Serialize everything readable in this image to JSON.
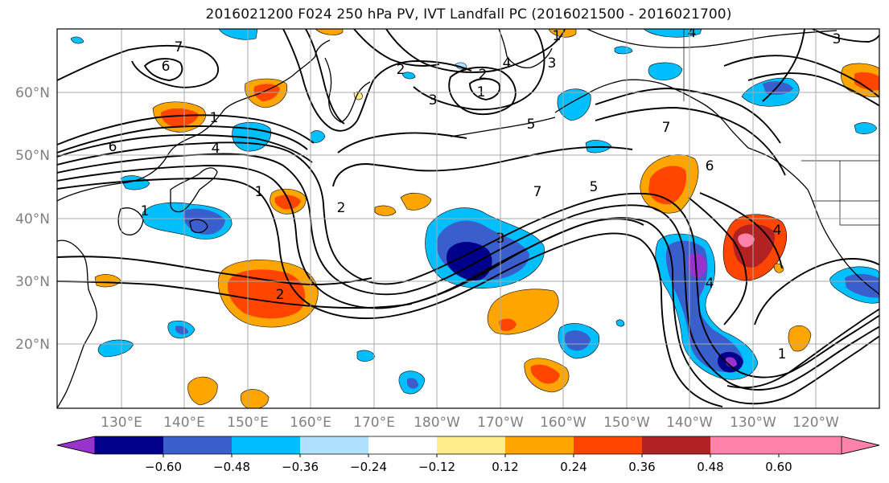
{
  "title": "2016021200 F024 250 hPa PV, IVT Landfall PC (2016021500 - 2016021700)",
  "map": {
    "lat_labels": [
      "60°N",
      "50°N",
      "40°N",
      "30°N",
      "20°N"
    ],
    "lon_labels": [
      "130°E",
      "140°E",
      "150°E",
      "160°E",
      "170°E",
      "180°W",
      "170°W",
      "160°W",
      "150°W",
      "140°W",
      "130°W",
      "120°W"
    ],
    "pv_contour_labels": [
      "7",
      "6",
      "6",
      "4",
      "1",
      "1",
      "2",
      "2",
      "4",
      "3",
      "3",
      "1",
      "2",
      "4",
      "1",
      "5",
      "7",
      "6",
      "7",
      "5",
      "1",
      "2",
      "3",
      "4",
      "1",
      "3",
      "4"
    ],
    "colors": {
      "axis_label": "#808080",
      "gridline": "#aaaaaa",
      "coastline": "#000000",
      "contour": "#000000"
    }
  },
  "colorbar": {
    "tick_labels": [
      "−0.60",
      "−0.48",
      "−0.36",
      "−0.24",
      "−0.12",
      "0.12",
      "0.24",
      "0.36",
      "0.48",
      "0.60"
    ],
    "bins": [
      {
        "color": "#9a32cd"
      },
      {
        "color": "#00008b"
      },
      {
        "color": "#3a5fcd"
      },
      {
        "color": "#00bfff"
      },
      {
        "color": "#b0e2ff"
      },
      {
        "color": "#ffffff"
      },
      {
        "color": "#ffec8b"
      },
      {
        "color": "#ffa500"
      },
      {
        "color": "#ff4500"
      },
      {
        "color": "#b22222"
      },
      {
        "color": "#ff82ab"
      }
    ]
  }
}
